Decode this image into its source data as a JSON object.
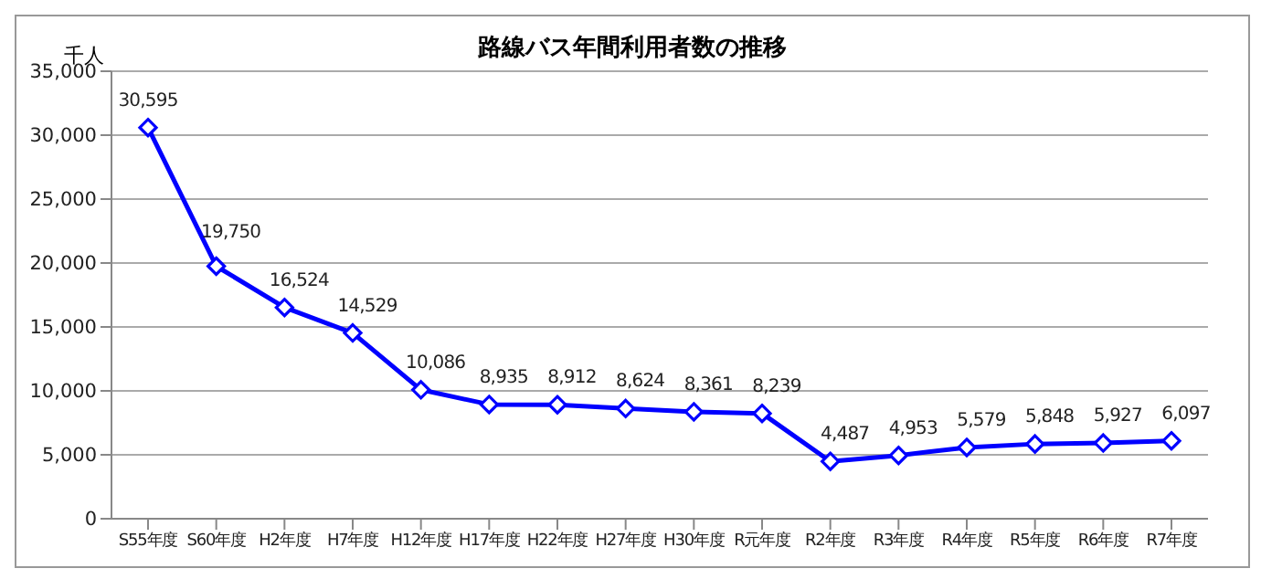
{
  "chart_data": {
    "type": "line",
    "title": "路線バス年間利用者数の推移",
    "ylabel": "千人",
    "categories": [
      "S55年度",
      "S60年度",
      "H2年度",
      "H7年度",
      "H12年度",
      "H17年度",
      "H22年度",
      "H27年度",
      "H30年度",
      "R元年度",
      "R2年度",
      "R3年度",
      "R4年度",
      "R5年度",
      "R6年度",
      "R7年度"
    ],
    "series": [
      {
        "color": "#0000ff",
        "values": [
          30595,
          19750,
          16524,
          14529,
          10086,
          8935,
          8912,
          8624,
          8361,
          8239,
          4487,
          4953,
          5579,
          5848,
          5927,
          6097
        ],
        "value_labels": [
          "30,595",
          "19,750",
          "16,524",
          "14,529",
          "10,086",
          "8,935",
          "8,912",
          "8,624",
          "8,361",
          "8,239",
          "4,487",
          "4,953",
          "5,579",
          "5,848",
          "5,927",
          "6,097"
        ]
      }
    ],
    "ylim": [
      0,
      35000
    ],
    "yticks": [
      {
        "value": 0,
        "label": "0"
      },
      {
        "value": 5000,
        "label": "5,000"
      },
      {
        "value": 10000,
        "label": "10,000"
      },
      {
        "value": 15000,
        "label": "15,000"
      },
      {
        "value": 20000,
        "label": "20,000"
      },
      {
        "value": 25000,
        "label": "25,000"
      },
      {
        "value": 30000,
        "label": "30,000"
      },
      {
        "value": 35000,
        "label": "35,000"
      }
    ],
    "grid": "y",
    "marker": "diamond",
    "line_style": "solid",
    "legend": false
  }
}
